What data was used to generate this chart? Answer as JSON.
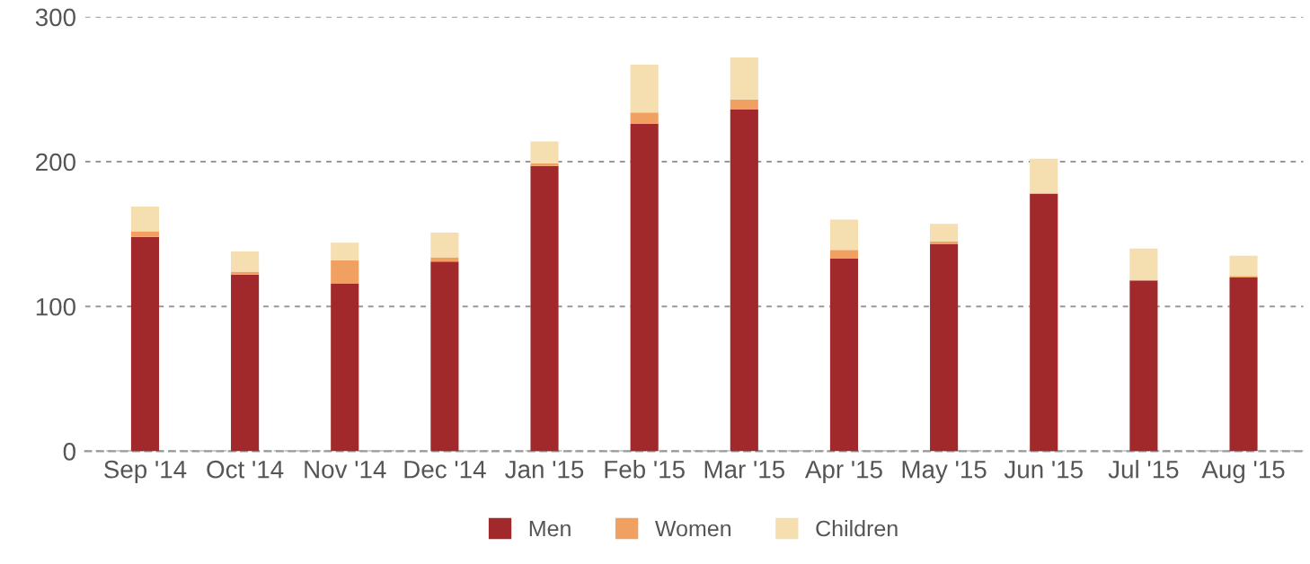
{
  "chart_data": {
    "type": "bar",
    "stacked": true,
    "categories": [
      "Sep '14",
      "Oct '14",
      "Nov '14",
      "Dec '14",
      "Jan '15",
      "Feb '15",
      "Mar '15",
      "Apr '15",
      "May '15",
      "Jun '15",
      "Jul '15",
      "Aug '15"
    ],
    "series": [
      {
        "name": "Men",
        "color": "#a2292b",
        "values": [
          148,
          122,
          116,
          131,
          197,
          226,
          236,
          133,
          143,
          178,
          118,
          120
        ]
      },
      {
        "name": "Women",
        "color": "#f0a060",
        "values": [
          4,
          2,
          16,
          3,
          2,
          8,
          7,
          6,
          2,
          0,
          0,
          1
        ]
      },
      {
        "name": "Children",
        "color": "#f5deb0",
        "values": [
          17,
          14,
          12,
          17,
          15,
          33,
          29,
          21,
          12,
          24,
          22,
          14
        ]
      }
    ],
    "ylim": [
      0,
      300
    ],
    "yticks": [
      0,
      100,
      200,
      300
    ],
    "grid": "y",
    "legend": "bottom"
  }
}
